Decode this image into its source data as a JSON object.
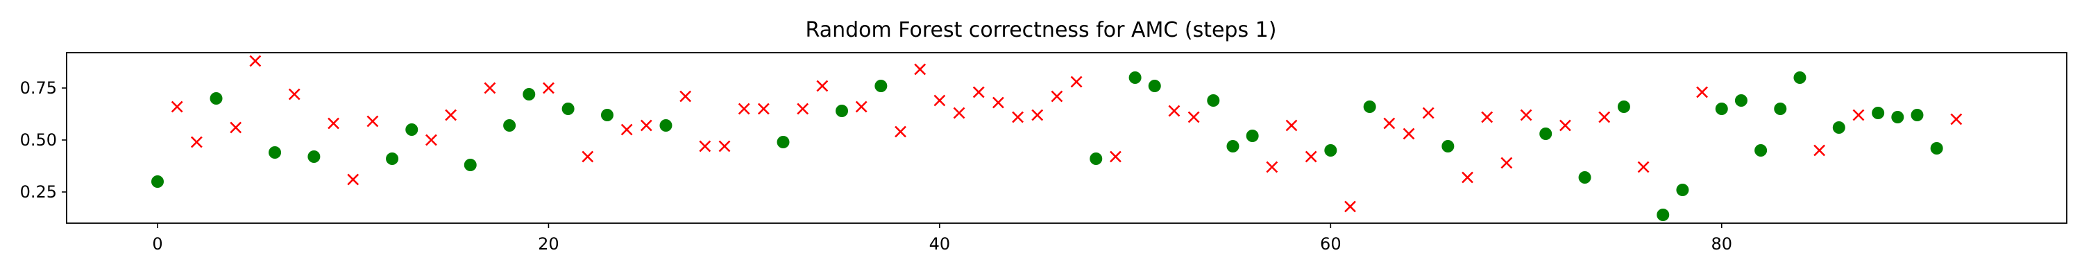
{
  "chart_data": {
    "type": "scatter",
    "title": "Random Forest correctness for AMC (steps 1)",
    "xlabel": "",
    "ylabel": "",
    "xlim": [
      -4.65,
      97.65
    ],
    "ylim": [
      0.1,
      0.92
    ],
    "xticks": [
      0,
      20,
      40,
      60,
      80
    ],
    "yticks": [
      0.25,
      0.5,
      0.75
    ],
    "xtick_labels": [
      "0",
      "20",
      "40",
      "60",
      "80"
    ],
    "ytick_labels": [
      "0.25",
      "0.50",
      "0.75"
    ],
    "grid": false,
    "legend": "none",
    "series": [
      {
        "marker": "circle",
        "color": "#008000",
        "points": [
          [
            0,
            0.3
          ],
          [
            3,
            0.7
          ],
          [
            6,
            0.44
          ],
          [
            8,
            0.42
          ],
          [
            12,
            0.41
          ],
          [
            13,
            0.55
          ],
          [
            16,
            0.38
          ],
          [
            18,
            0.57
          ],
          [
            19,
            0.72
          ],
          [
            21,
            0.65
          ],
          [
            23,
            0.62
          ],
          [
            26,
            0.57
          ],
          [
            32,
            0.49
          ],
          [
            35,
            0.64
          ],
          [
            37,
            0.76
          ],
          [
            48,
            0.41
          ],
          [
            50,
            0.8
          ],
          [
            51,
            0.76
          ],
          [
            54,
            0.69
          ],
          [
            55,
            0.47
          ],
          [
            56,
            0.52
          ],
          [
            60,
            0.45
          ],
          [
            62,
            0.66
          ],
          [
            66,
            0.47
          ],
          [
            71,
            0.53
          ],
          [
            73,
            0.32
          ],
          [
            75,
            0.66
          ],
          [
            77,
            0.14
          ],
          [
            78,
            0.26
          ],
          [
            80,
            0.65
          ],
          [
            81,
            0.69
          ],
          [
            82,
            0.45
          ],
          [
            83,
            0.65
          ],
          [
            84,
            0.8
          ],
          [
            86,
            0.56
          ],
          [
            88,
            0.63
          ],
          [
            89,
            0.61
          ],
          [
            90,
            0.62
          ],
          [
            91,
            0.46
          ]
        ]
      },
      {
        "marker": "x",
        "color": "#ff0000",
        "points": [
          [
            1,
            0.66
          ],
          [
            2,
            0.49
          ],
          [
            4,
            0.56
          ],
          [
            5,
            0.88
          ],
          [
            7,
            0.72
          ],
          [
            9,
            0.58
          ],
          [
            10,
            0.31
          ],
          [
            11,
            0.59
          ],
          [
            14,
            0.5
          ],
          [
            15,
            0.62
          ],
          [
            17,
            0.75
          ],
          [
            20,
            0.75
          ],
          [
            22,
            0.42
          ],
          [
            24,
            0.55
          ],
          [
            25,
            0.57
          ],
          [
            27,
            0.71
          ],
          [
            28,
            0.47
          ],
          [
            29,
            0.47
          ],
          [
            30,
            0.65
          ],
          [
            31,
            0.65
          ],
          [
            33,
            0.65
          ],
          [
            34,
            0.76
          ],
          [
            36,
            0.66
          ],
          [
            38,
            0.54
          ],
          [
            39,
            0.84
          ],
          [
            40,
            0.69
          ],
          [
            41,
            0.63
          ],
          [
            42,
            0.73
          ],
          [
            43,
            0.68
          ],
          [
            44,
            0.61
          ],
          [
            45,
            0.62
          ],
          [
            46,
            0.71
          ],
          [
            47,
            0.78
          ],
          [
            49,
            0.42
          ],
          [
            52,
            0.64
          ],
          [
            53,
            0.61
          ],
          [
            57,
            0.37
          ],
          [
            58,
            0.57
          ],
          [
            59,
            0.42
          ],
          [
            61,
            0.18
          ],
          [
            63,
            0.58
          ],
          [
            64,
            0.53
          ],
          [
            65,
            0.63
          ],
          [
            67,
            0.32
          ],
          [
            68,
            0.61
          ],
          [
            69,
            0.39
          ],
          [
            70,
            0.62
          ],
          [
            72,
            0.57
          ],
          [
            74,
            0.61
          ],
          [
            76,
            0.37
          ],
          [
            79,
            0.73
          ],
          [
            85,
            0.45
          ],
          [
            87,
            0.62
          ],
          [
            92,
            0.6
          ]
        ]
      }
    ]
  }
}
